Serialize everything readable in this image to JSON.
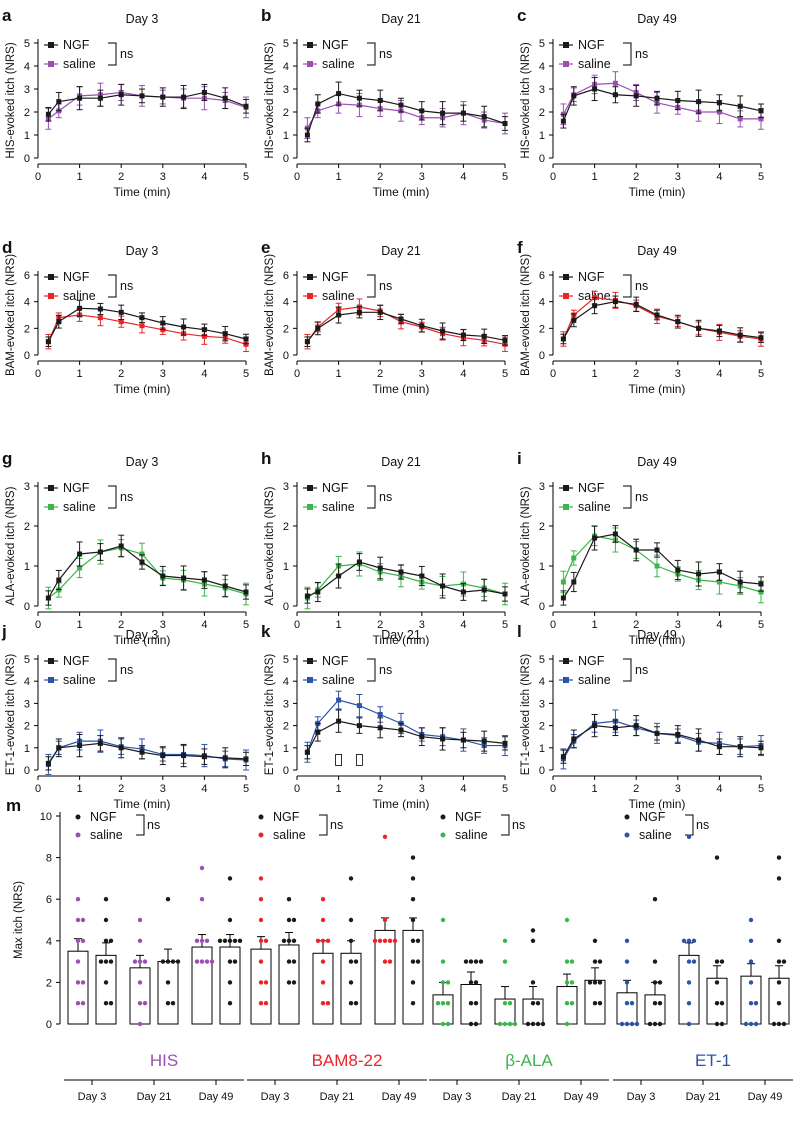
{
  "colors": {
    "NGF": "#1a1a1a",
    "HIS": "#9b4fb4",
    "BAM": "#e8262a",
    "ALA": "#3cb54a",
    "ET1": "#2d53a6"
  },
  "legend": {
    "ngf": "NGF",
    "saline": "saline",
    "ns": "ns"
  },
  "chart_data": [
    {
      "panel": "a",
      "type": "line",
      "title": "Day 3",
      "ylabel": "HIS-evoked itch (NRS)",
      "xlabel": "Time (min)",
      "ylim": [
        0,
        5
      ],
      "yticks": [
        0,
        1,
        2,
        3,
        4,
        5
      ],
      "xticks": [
        0,
        1,
        2,
        3,
        4,
        5
      ],
      "colorKey": "HIS",
      "x": [
        0.25,
        0.5,
        1,
        1.5,
        2,
        2.5,
        3,
        3.5,
        4,
        4.5,
        5
      ],
      "series": [
        {
          "name": "NGF",
          "values": [
            1.9,
            2.45,
            2.6,
            2.6,
            2.75,
            2.7,
            2.65,
            2.65,
            2.85,
            2.6,
            2.25
          ]
        },
        {
          "name": "saline",
          "values": [
            1.7,
            2.05,
            2.7,
            2.75,
            2.85,
            2.7,
            2.65,
            2.6,
            2.6,
            2.5,
            2.2
          ]
        }
      ]
    },
    {
      "panel": "b",
      "type": "line",
      "title": "Day 21",
      "ylabel": "HIS-evoked itch (NRS)",
      "xlabel": "Time (min)",
      "ylim": [
        0,
        5
      ],
      "yticks": [
        0,
        1,
        2,
        3,
        4,
        5
      ],
      "xticks": [
        0,
        1,
        2,
        3,
        4,
        5
      ],
      "colorKey": "HIS",
      "x": [
        0.25,
        0.5,
        1,
        1.5,
        2,
        2.5,
        3,
        3.5,
        4,
        4.5,
        5
      ],
      "series": [
        {
          "name": "NGF",
          "values": [
            1.0,
            2.35,
            2.8,
            2.6,
            2.5,
            2.3,
            2.05,
            1.95,
            1.95,
            1.8,
            1.5
          ]
        },
        {
          "name": "saline",
          "values": [
            1.3,
            2.05,
            2.35,
            2.3,
            2.15,
            2.05,
            1.75,
            1.75,
            1.95,
            1.65,
            1.5
          ]
        }
      ]
    },
    {
      "panel": "c",
      "type": "line",
      "title": "Day 49",
      "ylabel": "HIS-evoked itch (NRS)",
      "xlabel": "Time (min)",
      "ylim": [
        0,
        5
      ],
      "yticks": [
        0,
        1,
        2,
        3,
        4,
        5
      ],
      "xticks": [
        0,
        1,
        2,
        3,
        4,
        5
      ],
      "colorKey": "HIS",
      "x": [
        0.25,
        0.5,
        1,
        1.5,
        2,
        2.5,
        3,
        3.5,
        4,
        4.5,
        5
      ],
      "series": [
        {
          "name": "NGF",
          "values": [
            1.6,
            2.7,
            3.0,
            2.75,
            2.7,
            2.6,
            2.5,
            2.45,
            2.4,
            2.25,
            2.05
          ]
        },
        {
          "name": "saline",
          "values": [
            1.9,
            2.75,
            3.2,
            3.25,
            2.85,
            2.4,
            2.2,
            2.0,
            2.0,
            1.7,
            1.7
          ]
        }
      ]
    },
    {
      "panel": "d",
      "type": "line",
      "title": "Day 3",
      "ylabel": "BAM-evoked itch (NRS)",
      "xlabel": "Time (min)",
      "ylim": [
        0,
        6
      ],
      "yticks": [
        0,
        2,
        4,
        6
      ],
      "xticks": [
        0,
        1,
        2,
        3,
        4,
        5
      ],
      "colorKey": "BAM",
      "x": [
        0.25,
        0.5,
        1,
        1.5,
        2,
        2.5,
        3,
        3.5,
        4,
        4.5,
        5
      ],
      "series": [
        {
          "name": "NGF",
          "values": [
            1.0,
            2.5,
            3.5,
            3.45,
            3.2,
            2.8,
            2.4,
            2.1,
            1.9,
            1.6,
            1.2
          ]
        },
        {
          "name": "saline",
          "values": [
            1.0,
            2.8,
            3.0,
            2.8,
            2.5,
            2.2,
            1.9,
            1.6,
            1.4,
            1.3,
            0.8
          ]
        }
      ]
    },
    {
      "panel": "e",
      "type": "line",
      "title": "Day 21",
      "ylabel": "BAM-evoked itch (NRS)",
      "xlabel": "Time (min)",
      "ylim": [
        0,
        6
      ],
      "yticks": [
        0,
        2,
        4,
        6
      ],
      "xticks": [
        0,
        1,
        2,
        3,
        4,
        5
      ],
      "colorKey": "BAM",
      "x": [
        0.25,
        0.5,
        1,
        1.5,
        2,
        2.5,
        3,
        3.5,
        4,
        4.5,
        5
      ],
      "series": [
        {
          "name": "NGF",
          "values": [
            1.0,
            2.0,
            3.0,
            3.2,
            3.2,
            2.7,
            2.2,
            1.8,
            1.5,
            1.4,
            1.1
          ]
        },
        {
          "name": "saline",
          "values": [
            1.0,
            2.1,
            3.4,
            3.6,
            3.3,
            2.5,
            2.1,
            1.6,
            1.3,
            1.1,
            0.8
          ]
        }
      ]
    },
    {
      "panel": "f",
      "type": "line",
      "title": "Day 49",
      "ylabel": "BAM-evoked itch (NRS)",
      "xlabel": "Time (min)",
      "ylim": [
        0,
        6
      ],
      "yticks": [
        0,
        2,
        4,
        6
      ],
      "xticks": [
        0,
        1,
        2,
        3,
        4,
        5
      ],
      "colorKey": "BAM",
      "x": [
        0.25,
        0.5,
        1,
        1.5,
        2,
        2.5,
        3,
        3.5,
        4,
        4.5,
        5
      ],
      "series": [
        {
          "name": "NGF",
          "values": [
            1.2,
            2.6,
            3.7,
            4.0,
            3.8,
            3.0,
            2.5,
            2.0,
            1.8,
            1.5,
            1.3
          ]
        },
        {
          "name": "saline",
          "values": [
            1.2,
            3.0,
            4.3,
            4.1,
            3.7,
            2.9,
            2.5,
            2.0,
            1.7,
            1.4,
            1.2
          ]
        }
      ]
    },
    {
      "panel": "g",
      "type": "line",
      "title": "Day 3",
      "ylabel": "ALA-evoked itch (NRS)",
      "xlabel": "Time (min)",
      "ylim": [
        0,
        3
      ],
      "yticks": [
        0,
        1,
        2,
        3
      ],
      "xticks": [
        0,
        1,
        2,
        3,
        4,
        5
      ],
      "colorKey": "ALA",
      "x": [
        0.25,
        0.5,
        1,
        1.5,
        2,
        2.5,
        3,
        3.5,
        4,
        4.5,
        5
      ],
      "series": [
        {
          "name": "NGF",
          "values": [
            0.2,
            0.65,
            1.3,
            1.35,
            1.5,
            1.1,
            0.75,
            0.7,
            0.65,
            0.5,
            0.35
          ]
        },
        {
          "name": "saline",
          "values": [
            0.2,
            0.4,
            0.95,
            1.35,
            1.45,
            1.3,
            0.7,
            0.65,
            0.55,
            0.45,
            0.3
          ]
        }
      ]
    },
    {
      "panel": "h",
      "type": "line",
      "title": "Day 21",
      "ylabel": "ALA-evoked itch (NRS)",
      "xlabel": "Time (min)",
      "ylim": [
        0,
        3
      ],
      "yticks": [
        0,
        1,
        2,
        3
      ],
      "xticks": [
        0,
        1,
        2,
        3,
        4,
        5
      ],
      "colorKey": "ALA",
      "x": [
        0.25,
        0.5,
        1,
        1.5,
        2,
        2.5,
        3,
        3.5,
        4,
        4.5,
        5
      ],
      "series": [
        {
          "name": "NGF",
          "values": [
            0.25,
            0.35,
            0.75,
            1.1,
            0.95,
            0.85,
            0.75,
            0.5,
            0.35,
            0.4,
            0.3
          ]
        },
        {
          "name": "saline",
          "values": [
            0.2,
            0.4,
            1.0,
            1.05,
            0.85,
            0.75,
            0.6,
            0.5,
            0.55,
            0.45,
            0.3
          ]
        }
      ]
    },
    {
      "panel": "i",
      "type": "line",
      "title": "Day 49",
      "ylabel": "ALA-evoked itch (NRS)",
      "xlabel": "Time (min)",
      "ylim": [
        0,
        3
      ],
      "yticks": [
        0,
        1,
        2,
        3
      ],
      "xticks": [
        0,
        1,
        2,
        3,
        4,
        5
      ],
      "colorKey": "ALA",
      "x": [
        0.25,
        0.5,
        1,
        1.5,
        2,
        2.5,
        3,
        3.5,
        4,
        4.5,
        5
      ],
      "series": [
        {
          "name": "NGF",
          "values": [
            0.2,
            0.6,
            1.7,
            1.8,
            1.4,
            1.4,
            0.9,
            0.8,
            0.85,
            0.6,
            0.55
          ]
        },
        {
          "name": "saline",
          "values": [
            0.6,
            1.2,
            1.75,
            1.65,
            1.4,
            1.0,
            0.8,
            0.65,
            0.6,
            0.5,
            0.35
          ]
        }
      ]
    },
    {
      "panel": "j",
      "type": "line",
      "title": "Day 3",
      "ylabel": "ET-1-evoked itch (NRS)",
      "xlabel": "Time (min)",
      "ylim": [
        0,
        5
      ],
      "yticks": [
        0,
        1,
        2,
        3,
        4,
        5
      ],
      "xticks": [
        0,
        1,
        2,
        3,
        4,
        5
      ],
      "colorKey": "ET1",
      "x": [
        0.25,
        0.5,
        1,
        1.5,
        2,
        2.5,
        3,
        3.5,
        4,
        4.5,
        5
      ],
      "series": [
        {
          "name": "NGF",
          "values": [
            0.3,
            1.0,
            1.1,
            1.2,
            1.0,
            0.8,
            0.65,
            0.65,
            0.6,
            0.55,
            0.5
          ]
        },
        {
          "name": "saline",
          "values": [
            0.25,
            1.0,
            1.3,
            1.3,
            1.05,
            0.95,
            0.7,
            0.7,
            0.65,
            0.5,
            0.45
          ]
        }
      ]
    },
    {
      "panel": "k",
      "type": "line",
      "title": "Day 21",
      "ylabel": "ET-1-evoked itch (NRS)",
      "xlabel": "Time (min)",
      "ylim": [
        0,
        5
      ],
      "yticks": [
        0,
        1,
        2,
        3,
        4,
        5
      ],
      "xticks": [
        0,
        1,
        2,
        3,
        4,
        5
      ],
      "colorKey": "ET1",
      "x": [
        0.25,
        0.5,
        1,
        1.5,
        2,
        2.5,
        3,
        3.5,
        4,
        4.5,
        5
      ],
      "series": [
        {
          "name": "NGF",
          "values": [
            0.8,
            1.7,
            2.2,
            2.0,
            1.9,
            1.8,
            1.5,
            1.4,
            1.35,
            1.3,
            1.2
          ]
        },
        {
          "name": "saline",
          "values": [
            0.8,
            2.1,
            3.15,
            2.9,
            2.5,
            2.1,
            1.6,
            1.5,
            1.35,
            1.1,
            1.1
          ]
        }
      ],
      "significance_x": [
        1,
        1.5
      ]
    },
    {
      "panel": "l",
      "type": "line",
      "title": "Day 49",
      "ylabel": "ET-1-evoked itch (NRS)",
      "xlabel": "Time (min)",
      "ylim": [
        0,
        5
      ],
      "yticks": [
        0,
        1,
        2,
        3,
        4,
        5
      ],
      "xticks": [
        0,
        1,
        2,
        3,
        4,
        5
      ],
      "colorKey": "ET1",
      "x": [
        0.25,
        0.5,
        1,
        1.5,
        2,
        2.5,
        3,
        3.5,
        4,
        4.5,
        5
      ],
      "series": [
        {
          "name": "NGF",
          "values": [
            0.6,
            1.4,
            2.0,
            1.9,
            2.0,
            1.65,
            1.6,
            1.35,
            1.05,
            1.05,
            1.0
          ]
        },
        {
          "name": "saline",
          "values": [
            0.5,
            1.3,
            2.1,
            2.2,
            1.9,
            1.65,
            1.55,
            1.25,
            1.2,
            1.05,
            1.1
          ]
        }
      ]
    },
    {
      "panel": "m",
      "type": "bar",
      "ylabel": "Max itch (NRS)",
      "ylim": [
        0,
        10
      ],
      "yticks": [
        0,
        2,
        4,
        6,
        8,
        10
      ],
      "days": [
        "Day 3",
        "Day 21",
        "Day 49"
      ],
      "groups": [
        {
          "name": "HIS",
          "colorKey": "HIS",
          "saline": [
            3.5,
            2.7,
            3.7
          ],
          "ngf": [
            3.3,
            3.0,
            3.7
          ],
          "saline_pts": [
            [
              1,
              1,
              2,
              2,
              3,
              4,
              4,
              5,
              5,
              6
            ],
            [
              0,
              1,
              1,
              2,
              3,
              3,
              3,
              4,
              5
            ],
            [
              3,
              3,
              3,
              3,
              4,
              4,
              4,
              6,
              7.5
            ]
          ],
          "ngf_pts": [
            [
              1,
              1,
              2,
              3,
              3,
              3,
              4,
              4,
              5,
              6
            ],
            [
              1,
              1,
              2,
              3,
              3,
              3,
              3,
              6
            ],
            [
              1,
              2,
              3,
              3,
              4,
              4,
              4,
              4,
              4,
              5,
              7
            ]
          ]
        },
        {
          "name": "BAM8-22",
          "colorKey": "BAM",
          "saline": [
            3.6,
            3.4,
            4.5
          ],
          "ngf": [
            3.8,
            3.4,
            4.5
          ],
          "saline_pts": [
            [
              1,
              1,
              2,
              2,
              3,
              4,
              4,
              5,
              6,
              7
            ],
            [
              1,
              1,
              2,
              3,
              4,
              4,
              4,
              5,
              6
            ],
            [
              3,
              3,
              4,
              4,
              4,
              4,
              4,
              5,
              9
            ]
          ],
          "ngf_pts": [
            [
              2,
              2,
              3,
              3,
              4,
              4,
              4,
              5,
              5,
              6
            ],
            [
              1,
              1,
              2,
              3,
              3,
              4,
              5,
              7
            ],
            [
              1,
              2,
              3,
              3,
              4,
              4,
              5,
              6,
              7,
              8
            ]
          ]
        },
        {
          "name": "β-ALA",
          "colorKey": "ALA",
          "saline": [
            1.4,
            1.2,
            1.8
          ],
          "ngf": [
            1.9,
            1.2,
            2.1
          ],
          "saline_pts": [
            [
              0,
              0,
              1,
              1,
              1,
              2,
              2,
              3,
              5
            ],
            [
              0,
              0,
              0,
              0,
              1,
              1,
              3,
              4
            ],
            [
              0,
              1,
              1,
              2,
              2,
              3,
              3,
              5
            ]
          ],
          "ngf_pts": [
            [
              0,
              0,
              1,
              1,
              2,
              2,
              3,
              3,
              3,
              3
            ],
            [
              0,
              0,
              0,
              0,
              1,
              1,
              2,
              4,
              4.5
            ],
            [
              1,
              1,
              2,
              2,
              2,
              3,
              3,
              4
            ]
          ]
        },
        {
          "name": "ET-1",
          "colorKey": "ET1",
          "saline": [
            1.5,
            3.3,
            2.3
          ],
          "ngf": [
            1.4,
            2.2,
            2.2
          ],
          "saline_pts": [
            [
              0,
              0,
              0,
              0,
              1,
              1,
              2,
              3,
              4
            ],
            [
              0,
              1,
              2,
              3,
              3,
              4,
              4,
              4,
              9
            ],
            [
              0,
              0,
              0,
              1,
              1,
              2,
              3,
              4,
              5
            ]
          ],
          "ngf_pts": [
            [
              0,
              0,
              0,
              1,
              1,
              2,
              2,
              3,
              6
            ],
            [
              0,
              0,
              1,
              1,
              2,
              3,
              3,
              8
            ],
            [
              0,
              0,
              0,
              1,
              2,
              3,
              3,
              4,
              7,
              8
            ]
          ]
        }
      ]
    }
  ]
}
